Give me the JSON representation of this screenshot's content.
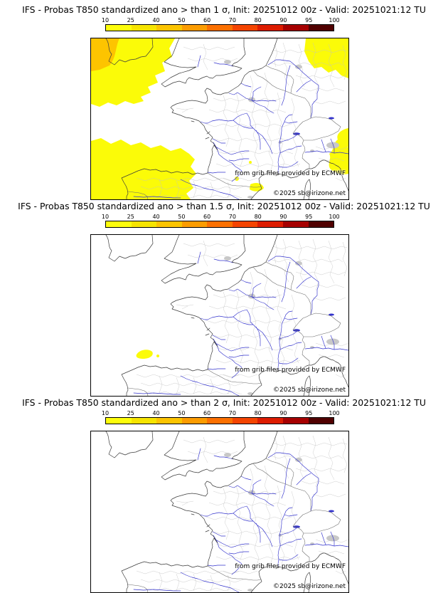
{
  "colorbar": {
    "ticks": [
      "10",
      "25",
      "40",
      "50",
      "60",
      "70",
      "80",
      "90",
      "95",
      "100"
    ],
    "colors": [
      "#fdfd0c",
      "#f6e400",
      "#fcc400",
      "#fc9c00",
      "#fc7000",
      "#f44400",
      "#dd1c00",
      "#a60000",
      "#500000"
    ]
  },
  "colors": {
    "prob_10": "#fbfb08",
    "prob_25": "#fdc400",
    "river": "#3333cc",
    "lake": "#3333cc",
    "coast": "#3c3c3c",
    "country_border": "#6a6a6a",
    "admin_border": "#c2c2c2",
    "urban": "#c8c8c8",
    "frame": "#000000"
  },
  "panels": [
    {
      "title": "IFS - Probas T850  standardized ano > than 1 σ, Init: 20251012 00z - Valid: 20251021:12 TU",
      "threshold": "> than 1 σ",
      "credit": "from grib files provided by ECMWF",
      "copyright": "©2025 sb@irizone.net"
    },
    {
      "title": "IFS - Probas T850  standardized ano > than 1.5 σ, Init: 20251012 00z - Valid: 20251021:12 TU",
      "threshold": "> than 1.5 σ",
      "credit": "from grib files provided by ECMWF",
      "copyright": "©2025 sb@irizone.net"
    },
    {
      "title": "IFS - Probas T850  standardized ano > than 2 σ, Init: 20251012 00z - Valid: 20251021:12 TU",
      "threshold": "> than 2 σ",
      "credit": "from grib files provided by ECMWF",
      "copyright": "©2025 sb@irizone.net"
    }
  ]
}
